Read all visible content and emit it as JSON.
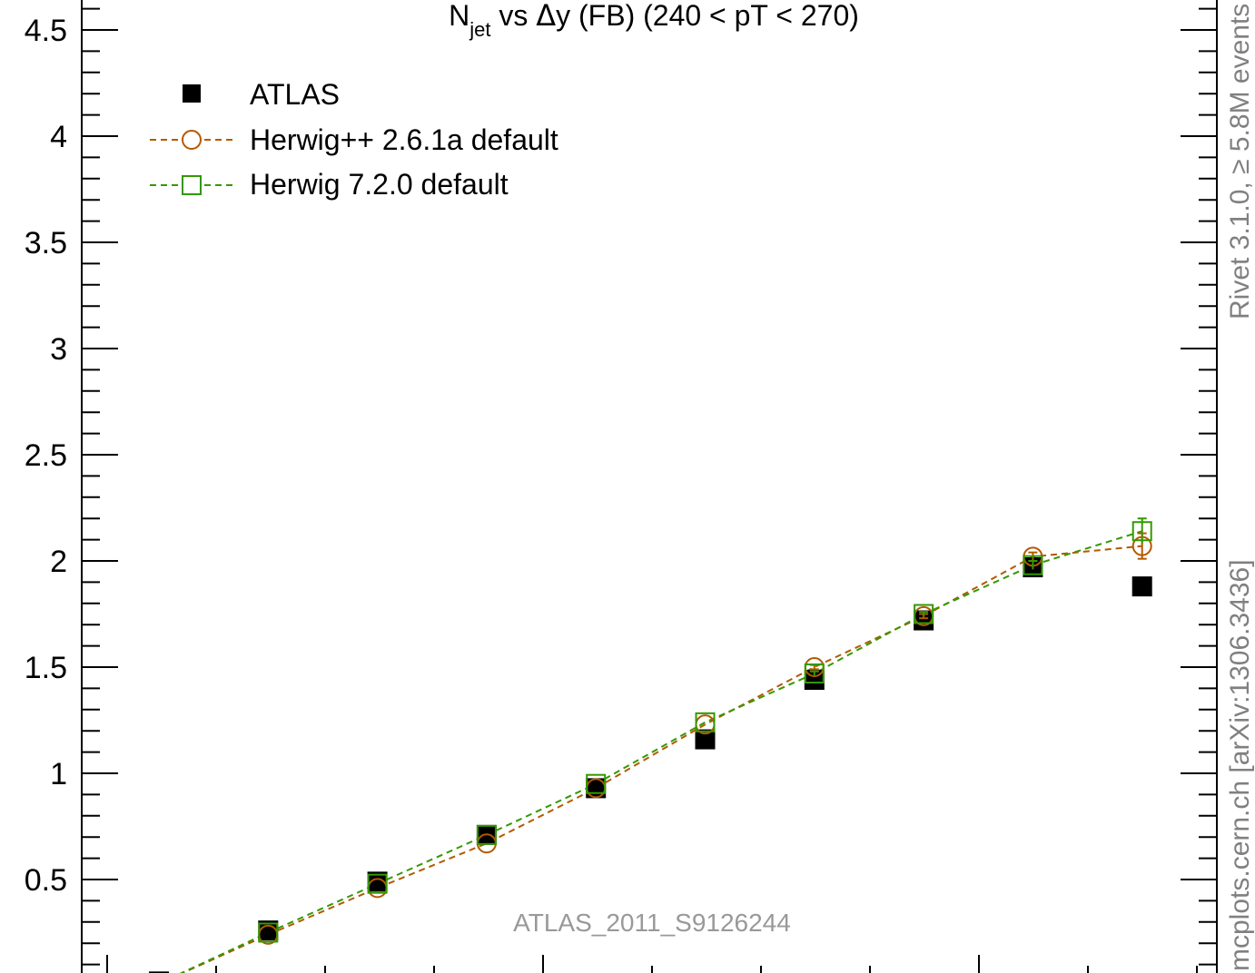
{
  "chart_data": {
    "type": "scatter",
    "title_parts": {
      "n": "N",
      "sub": "jet",
      "rest": " vs ",
      "delta": "Δ",
      "y": "y",
      "suffix": " (FB) (240 < pT < 270)"
    },
    "xlabel": "",
    "ylabel": "",
    "xlim": [
      0.5,
      9.75
    ],
    "ylim": [
      0,
      4.6
    ],
    "y_ticks": [
      "0.5",
      "1",
      "1.5",
      "2",
      "2.5",
      "3",
      "3.5",
      "4",
      "4.5"
    ],
    "grid": false,
    "legend_position": "top-left",
    "x": [
      0.75,
      1.75,
      2.75,
      3.75,
      4.75,
      5.75,
      6.75,
      7.75,
      8.75,
      9.75
    ],
    "series": [
      {
        "name": "ATLAS",
        "color": "#000000",
        "marker": "filled-square",
        "values": [
          0.02,
          0.26,
          0.49,
          0.71,
          0.93,
          1.16,
          1.44,
          1.72,
          1.97,
          1.88
        ]
      },
      {
        "name": "Herwig++ 2.6.1a default",
        "color": "#b35900",
        "marker": "open-circle",
        "line": "dashed",
        "values": [
          0.01,
          0.24,
          0.46,
          0.67,
          0.93,
          1.23,
          1.5,
          1.74,
          2.02,
          2.07
        ],
        "errors": [
          0,
          0,
          0,
          0,
          0,
          0,
          0.01,
          0.01,
          0.02,
          0.06
        ]
      },
      {
        "name": "Herwig 7.2.0 default",
        "color": "#339900",
        "marker": "open-square",
        "line": "dashed",
        "values": [
          0.01,
          0.25,
          0.48,
          0.71,
          0.95,
          1.24,
          1.47,
          1.75,
          1.98,
          2.14
        ],
        "errors": [
          0,
          0,
          0,
          0,
          0,
          0,
          0.01,
          0.01,
          0.02,
          0.06
        ]
      }
    ],
    "watermark": "ATLAS_2011_S9126244",
    "side_label_top": "Rivet 3.1.0, ≥ 5.8M events",
    "side_label_bottom": "mcplots.cern.ch [arXiv:1306.3436]"
  }
}
